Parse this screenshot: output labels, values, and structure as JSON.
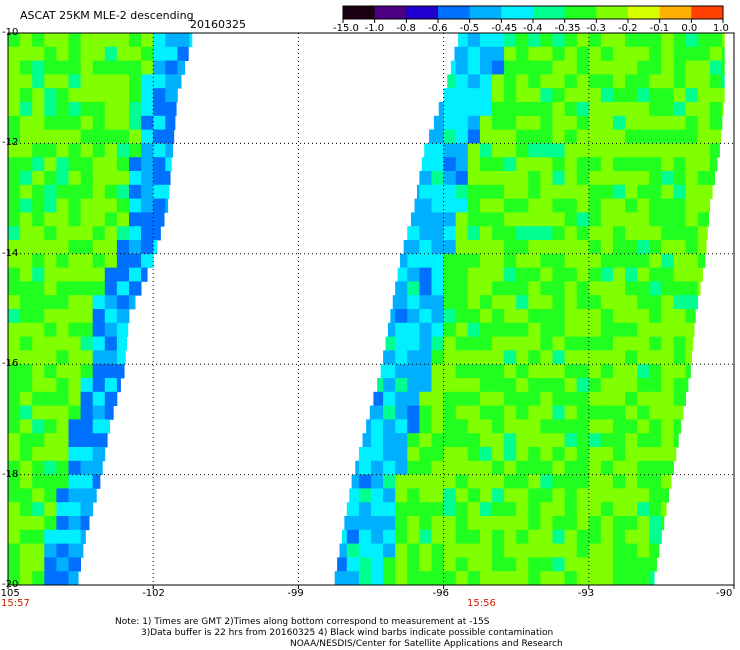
{
  "header": {
    "title": "ASCAT 25KM MLE-2 descending",
    "date": "20160325"
  },
  "colorbar": {
    "labels": [
      "-15.0",
      "-1.0",
      "-0.8",
      "-0.6",
      "-0.5",
      "-0.45",
      "-0.4",
      "-0.35",
      "-0.3",
      "-0.2",
      "-0.1",
      "0.0",
      "1.0"
    ],
    "colors": [
      "#1a0010",
      "#4a0080",
      "#2000d0",
      "#0070ff",
      "#00b0ff",
      "#00f0ff",
      "#00ff90",
      "#20ff20",
      "#80ff00",
      "#d8ff00",
      "#ffb000",
      "#ff4000"
    ]
  },
  "footer": {
    "time_left": "15:57",
    "time_mid": "15:56",
    "note_line1": "Note: 1) Times are GMT 2)Times along bottom correspond to measurement at -15S",
    "note_line2": "3)Data buffer is 22 hrs from 20160325 4) Black wind barbs indicate possible contamination",
    "note_line3": "NOAA/NESDIS/Center for Satellite Applications and Research"
  },
  "chart_data": {
    "type": "heatmap",
    "title": "ASCAT 25KM MLE-2 descending",
    "subtitle": "20160325",
    "xlabel": "",
    "ylabel": "",
    "xlim": [
      -105,
      -90
    ],
    "ylim": [
      -20,
      -10
    ],
    "x_ticks": [
      -105,
      -102,
      -99,
      -96,
      -93,
      -90
    ],
    "x_tick_labels": [
      "-105",
      "-102",
      "-99",
      "-96",
      "-93",
      "-90"
    ],
    "y_ticks": [
      -10,
      -12,
      -14,
      -16,
      -18,
      -20
    ],
    "y_tick_labels": [
      "-10",
      "-12",
      "-14",
      "-16",
      "-18",
      "-20"
    ],
    "grid": true,
    "color_levels": [
      -15.0,
      -1.0,
      -0.8,
      -0.6,
      -0.5,
      -0.45,
      -0.4,
      -0.35,
      -0.3,
      -0.2,
      -0.1,
      0.0,
      1.0
    ],
    "swaths": [
      {
        "lat": [
          -10,
          -11,
          -12,
          -13,
          -14,
          -15,
          -16,
          -17,
          -18,
          -19,
          -20
        ],
        "lon_west": [
          -105,
          -105,
          -105,
          -105,
          -105,
          -105,
          -105,
          -105,
          -105,
          -105,
          -105
        ],
        "lon_east": [
          -101.2,
          -101.5,
          -101.6,
          -101.7,
          -102.0,
          -102.5,
          -102.6,
          -102.9,
          -103.1,
          -103.4,
          -103.6
        ],
        "predominant_value": -0.3,
        "edge_value": -0.5
      },
      {
        "lat": [
          -10,
          -11,
          -12,
          -13,
          -14,
          -15,
          -16,
          -17,
          -18,
          -19,
          -20
        ],
        "lon_west": [
          -95.7,
          -96.0,
          -96.4,
          -96.6,
          -96.9,
          -97.1,
          -97.3,
          -97.6,
          -97.9,
          -98.1,
          -98.3
        ],
        "lon_east": [
          -90.2,
          -90.2,
          -90.3,
          -90.5,
          -90.6,
          -90.8,
          -90.9,
          -91.1,
          -91.3,
          -91.5,
          -91.7
        ],
        "predominant_value": -0.3,
        "edge_value": -0.45
      }
    ]
  }
}
